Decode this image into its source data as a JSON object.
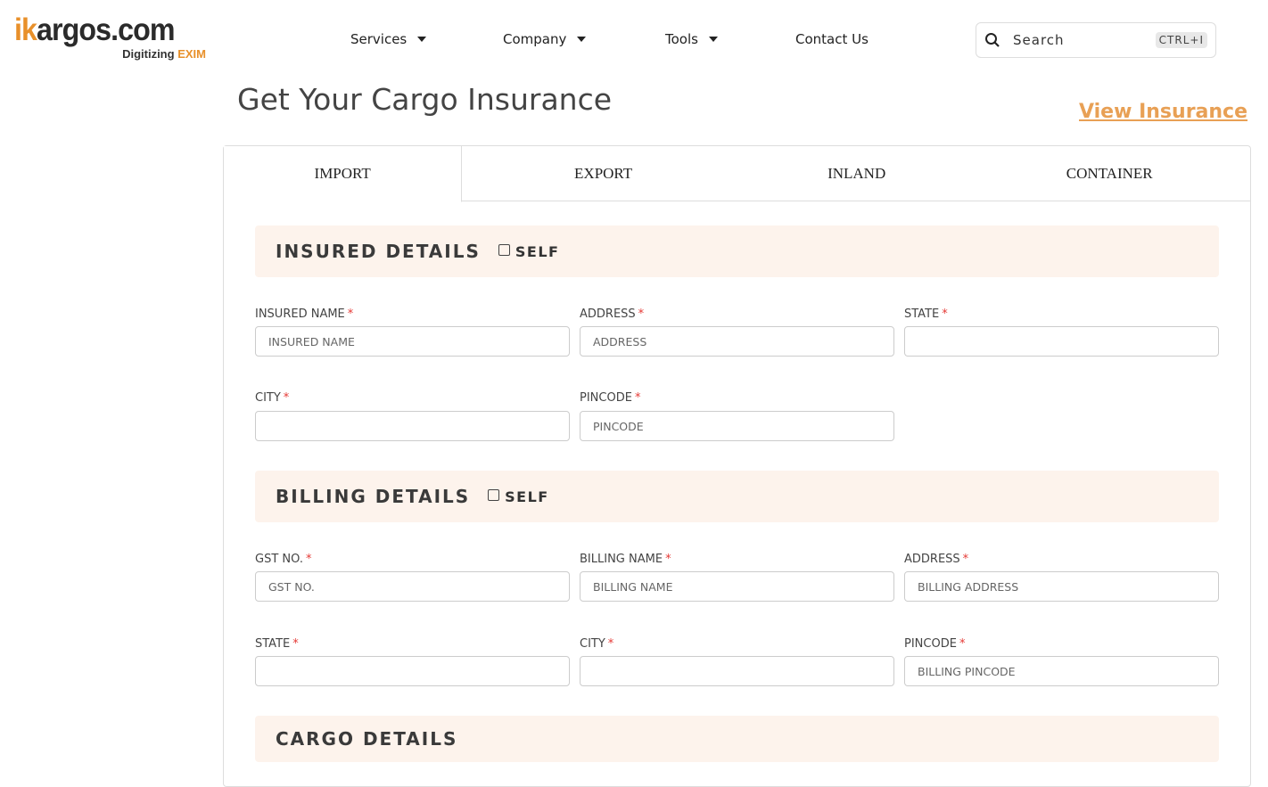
{
  "logo": {
    "text_ik": "ik",
    "text_rest": "argos.com",
    "tagline": "Digitizing",
    "tagline_accent": "EXIM"
  },
  "nav": [
    {
      "label": "Services",
      "dropdown": true
    },
    {
      "label": "Company",
      "dropdown": true
    },
    {
      "label": "Tools",
      "dropdown": true
    },
    {
      "label": "Contact Us",
      "dropdown": false
    }
  ],
  "search": {
    "placeholder": "Search",
    "shortcut": "CTRL+I",
    "icon": "search-icon"
  },
  "page": {
    "title": "Get Your Cargo Insurance",
    "view_link": "View Insurance"
  },
  "tabs": [
    {
      "label": "IMPORT",
      "active": true
    },
    {
      "label": "EXPORT"
    },
    {
      "label": "INLAND"
    },
    {
      "label": "CONTAINER"
    }
  ],
  "colors": {
    "accent": "#e8902a",
    "section_bg": "#fdf3ec",
    "required": "#e53935"
  },
  "insured": {
    "title": "INSURED DETAILS",
    "self": "SELF",
    "fields": [
      {
        "label": "INSURED NAME",
        "placeholder": "INSURED NAME"
      },
      {
        "label": "ADDRESS",
        "placeholder": "ADDRESS"
      },
      {
        "label": "STATE",
        "placeholder": ""
      },
      {
        "label": "CITY",
        "placeholder": ""
      },
      {
        "label": "PINCODE",
        "placeholder": "PINCODE"
      }
    ]
  },
  "billing": {
    "title": "BILLING DETAILS",
    "self": "SELF",
    "fields": [
      {
        "label": "GST NO.",
        "placeholder": "GST NO."
      },
      {
        "label": "BILLING NAME",
        "placeholder": "BILLING NAME"
      },
      {
        "label": "ADDRESS",
        "placeholder": "BILLING ADDRESS"
      },
      {
        "label": "STATE",
        "placeholder": ""
      },
      {
        "label": "CITY",
        "placeholder": ""
      },
      {
        "label": "PINCODE",
        "placeholder": "BILLING PINCODE"
      }
    ]
  },
  "cargo": {
    "title": "CARGO DETAILS"
  },
  "required_mark": "*"
}
